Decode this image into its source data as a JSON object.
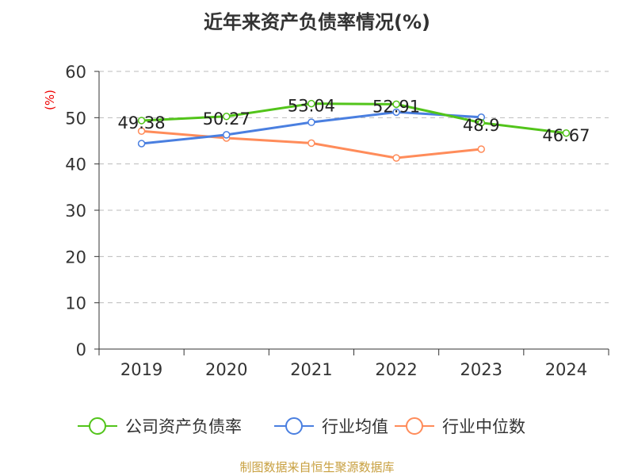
{
  "title": "近年来资产负债率情况(%)",
  "source": "制图数据来自恒生聚源数据库",
  "chart_data": {
    "type": "line",
    "title": "近年来资产负债率情况(%)",
    "ylabel": "(%)",
    "xlabel": "",
    "ylim": [
      0,
      60
    ],
    "yticks": [
      0,
      10,
      20,
      30,
      40,
      50,
      60
    ],
    "grid": true,
    "legend_position": "bottom",
    "categories": [
      "2019",
      "2020",
      "2021",
      "2022",
      "2023",
      "2024"
    ],
    "series": [
      {
        "name": "公司资产负债率",
        "color": "#52c41a",
        "values": [
          49.38,
          50.27,
          53.04,
          52.91,
          48.9,
          46.67
        ],
        "labels": [
          "49.38",
          "50.27",
          "53.04",
          "52.91",
          "48.9",
          "46.67"
        ]
      },
      {
        "name": "行业均值",
        "color": "#4a7fe0",
        "values": [
          44.4,
          46.3,
          49.0,
          51.2,
          50.1,
          null
        ]
      },
      {
        "name": "行业中位数",
        "color": "#ff8c5a",
        "values": [
          47.1,
          45.6,
          44.5,
          41.3,
          43.2,
          null
        ]
      }
    ]
  }
}
